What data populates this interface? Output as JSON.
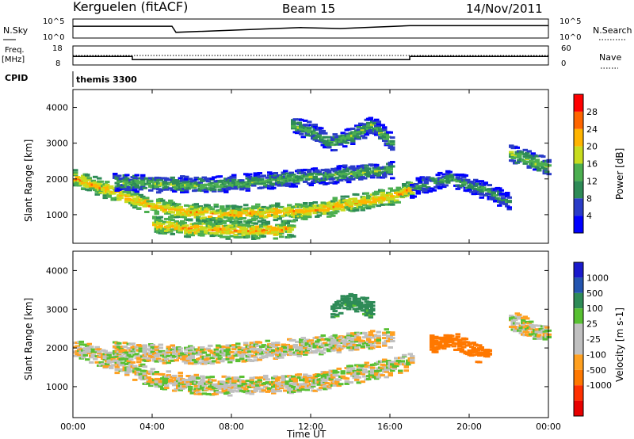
{
  "header": {
    "station": "Kerguelen (fitACF)",
    "beam": "Beam 15",
    "date": "14/Nov/2011"
  },
  "strip_nsky": {
    "label": "N.Sky",
    "left_ticks": [
      "10^5",
      "10^0"
    ],
    "right_ticks": [
      "10^5",
      "10^0"
    ],
    "right_label": "N.Search"
  },
  "strip_freq": {
    "label_line1": "Freq.",
    "label_line2": "[MHz]",
    "left_ticks": [
      "18",
      "8"
    ],
    "right_ticks": [
      "60",
      "0"
    ],
    "right_label": "Nave"
  },
  "strip_cpid": {
    "label": "CPID",
    "value": "themis 3300"
  },
  "x_axis": {
    "label": "Time UT",
    "ticks": [
      "00:00",
      "04:00",
      "08:00",
      "12:00",
      "16:00",
      "20:00",
      "00:00"
    ],
    "hours": [
      0,
      4,
      8,
      12,
      16,
      20,
      24
    ]
  },
  "colors": {
    "power": [
      "#0000ff",
      "#2a3cc8",
      "#2e8b57",
      "#4caf50",
      "#c8dc1e",
      "#ffb400",
      "#ff6600",
      "#ff0000"
    ],
    "velocity": [
      "#1a1acc",
      "#2455b0",
      "#2e8b57",
      "#58c032",
      "#c0c0c0",
      "#c0c0c0",
      "#ffa020",
      "#ff7800",
      "#ff3000",
      "#e80000"
    ]
  },
  "chart_data": [
    {
      "type": "heatmap",
      "title": "",
      "xlabel": "",
      "ylabel": "Slant Range [km]",
      "xlim": [
        0,
        24
      ],
      "ylim": [
        200,
        4500
      ],
      "y_ticks": [
        "1000",
        "2000",
        "3000",
        "4000"
      ],
      "y_values": [
        1000,
        2000,
        3000,
        4000
      ],
      "colorbar": {
        "label": "Power [dB]",
        "ticks": [
          "4",
          "8",
          "12",
          "16",
          "20",
          "24",
          "28"
        ],
        "values": [
          4,
          8,
          12,
          16,
          20,
          24,
          28
        ],
        "range": [
          0,
          32
        ]
      },
      "bands": [
        {
          "name": "",
          "t": [
            0,
            2,
            4,
            6,
            8,
            10,
            12,
            14,
            16,
            17
          ],
          "range_km": [
            2000,
            1600,
            1200,
            1050,
            1000,
            1050,
            1100,
            1300,
            1500,
            1700
          ],
          "power_db": 22
        },
        {
          "name": "",
          "t": [
            2,
            4,
            6,
            8,
            10,
            12,
            14,
            16
          ],
          "range_km": [
            1900,
            1850,
            1800,
            1850,
            1950,
            2050,
            2150,
            2250
          ],
          "power_db": 14
        },
        {
          "name": "",
          "t": [
            4,
            6,
            8,
            10,
            11
          ],
          "range_km": [
            700,
            600,
            550,
            550,
            600
          ],
          "power_db": 22
        },
        {
          "name": "",
          "t": [
            11,
            12,
            13,
            14,
            15,
            16
          ],
          "range_km": [
            3500,
            3300,
            3000,
            3200,
            3500,
            3000
          ],
          "power_db": 14
        },
        {
          "name": "",
          "t": [
            17,
            18,
            19,
            20,
            21,
            22
          ],
          "range_km": [
            1700,
            1900,
            2000,
            1800,
            1600,
            1300
          ],
          "power_db": 12
        },
        {
          "name": "",
          "t": [
            22,
            23,
            24
          ],
          "range_km": [
            2700,
            2500,
            2300
          ],
          "power_db": 16
        }
      ]
    },
    {
      "type": "heatmap",
      "title": "",
      "xlabel": "Time UT",
      "ylabel": "Slant Range [km]",
      "xlim": [
        0,
        24
      ],
      "ylim": [
        200,
        4500
      ],
      "y_ticks": [
        "1000",
        "2000",
        "3000",
        "4000"
      ],
      "y_values": [
        1000,
        2000,
        3000,
        4000
      ],
      "colorbar": {
        "label": "Velocity [m s-1]",
        "ticks": [
          "1000",
          "500",
          "100",
          "25",
          "-25",
          "-100",
          "-500",
          "-1000"
        ],
        "values": [
          1000,
          500,
          100,
          25,
          -25,
          -100,
          -500,
          -1000
        ]
      },
      "bands": [
        {
          "name": "",
          "t": [
            0,
            2,
            4,
            6,
            8,
            10,
            12,
            14,
            16,
            17
          ],
          "range_km": [
            2000,
            1600,
            1200,
            1050,
            1000,
            1050,
            1100,
            1300,
            1500,
            1700
          ],
          "velocity": 0
        },
        {
          "name": "",
          "t": [
            2,
            4,
            6,
            8,
            10,
            12,
            14,
            16
          ],
          "range_km": [
            1900,
            1850,
            1800,
            1850,
            1950,
            2050,
            2150,
            2250
          ],
          "velocity": 0
        },
        {
          "name": "",
          "t": [
            13,
            14,
            15
          ],
          "range_km": [
            3000,
            3200,
            3000
          ],
          "velocity": 150
        },
        {
          "name": "",
          "t": [
            18,
            19,
            20,
            21
          ],
          "range_km": [
            2100,
            2200,
            1900,
            1800
          ],
          "velocity": -200
        },
        {
          "name": "",
          "t": [
            22,
            23,
            24
          ],
          "range_km": [
            2700,
            2500,
            2300
          ],
          "velocity": 0
        }
      ]
    }
  ],
  "summary_lines": {
    "nsky_hours": [
      0,
      5,
      5.2,
      11.5,
      13.5,
      17,
      19,
      24
    ],
    "nsky_level": [
      0.62,
      0.62,
      0.3,
      0.55,
      0.5,
      0.65,
      0.65,
      0.65
    ],
    "freq_steps": [
      {
        "from": 0,
        "to": 3,
        "mhz": 12.5
      },
      {
        "from": 3,
        "to": 17,
        "mhz": 10.8
      },
      {
        "from": 17,
        "to": 24,
        "mhz": 12.5
      }
    ],
    "nave_level": 30
  }
}
